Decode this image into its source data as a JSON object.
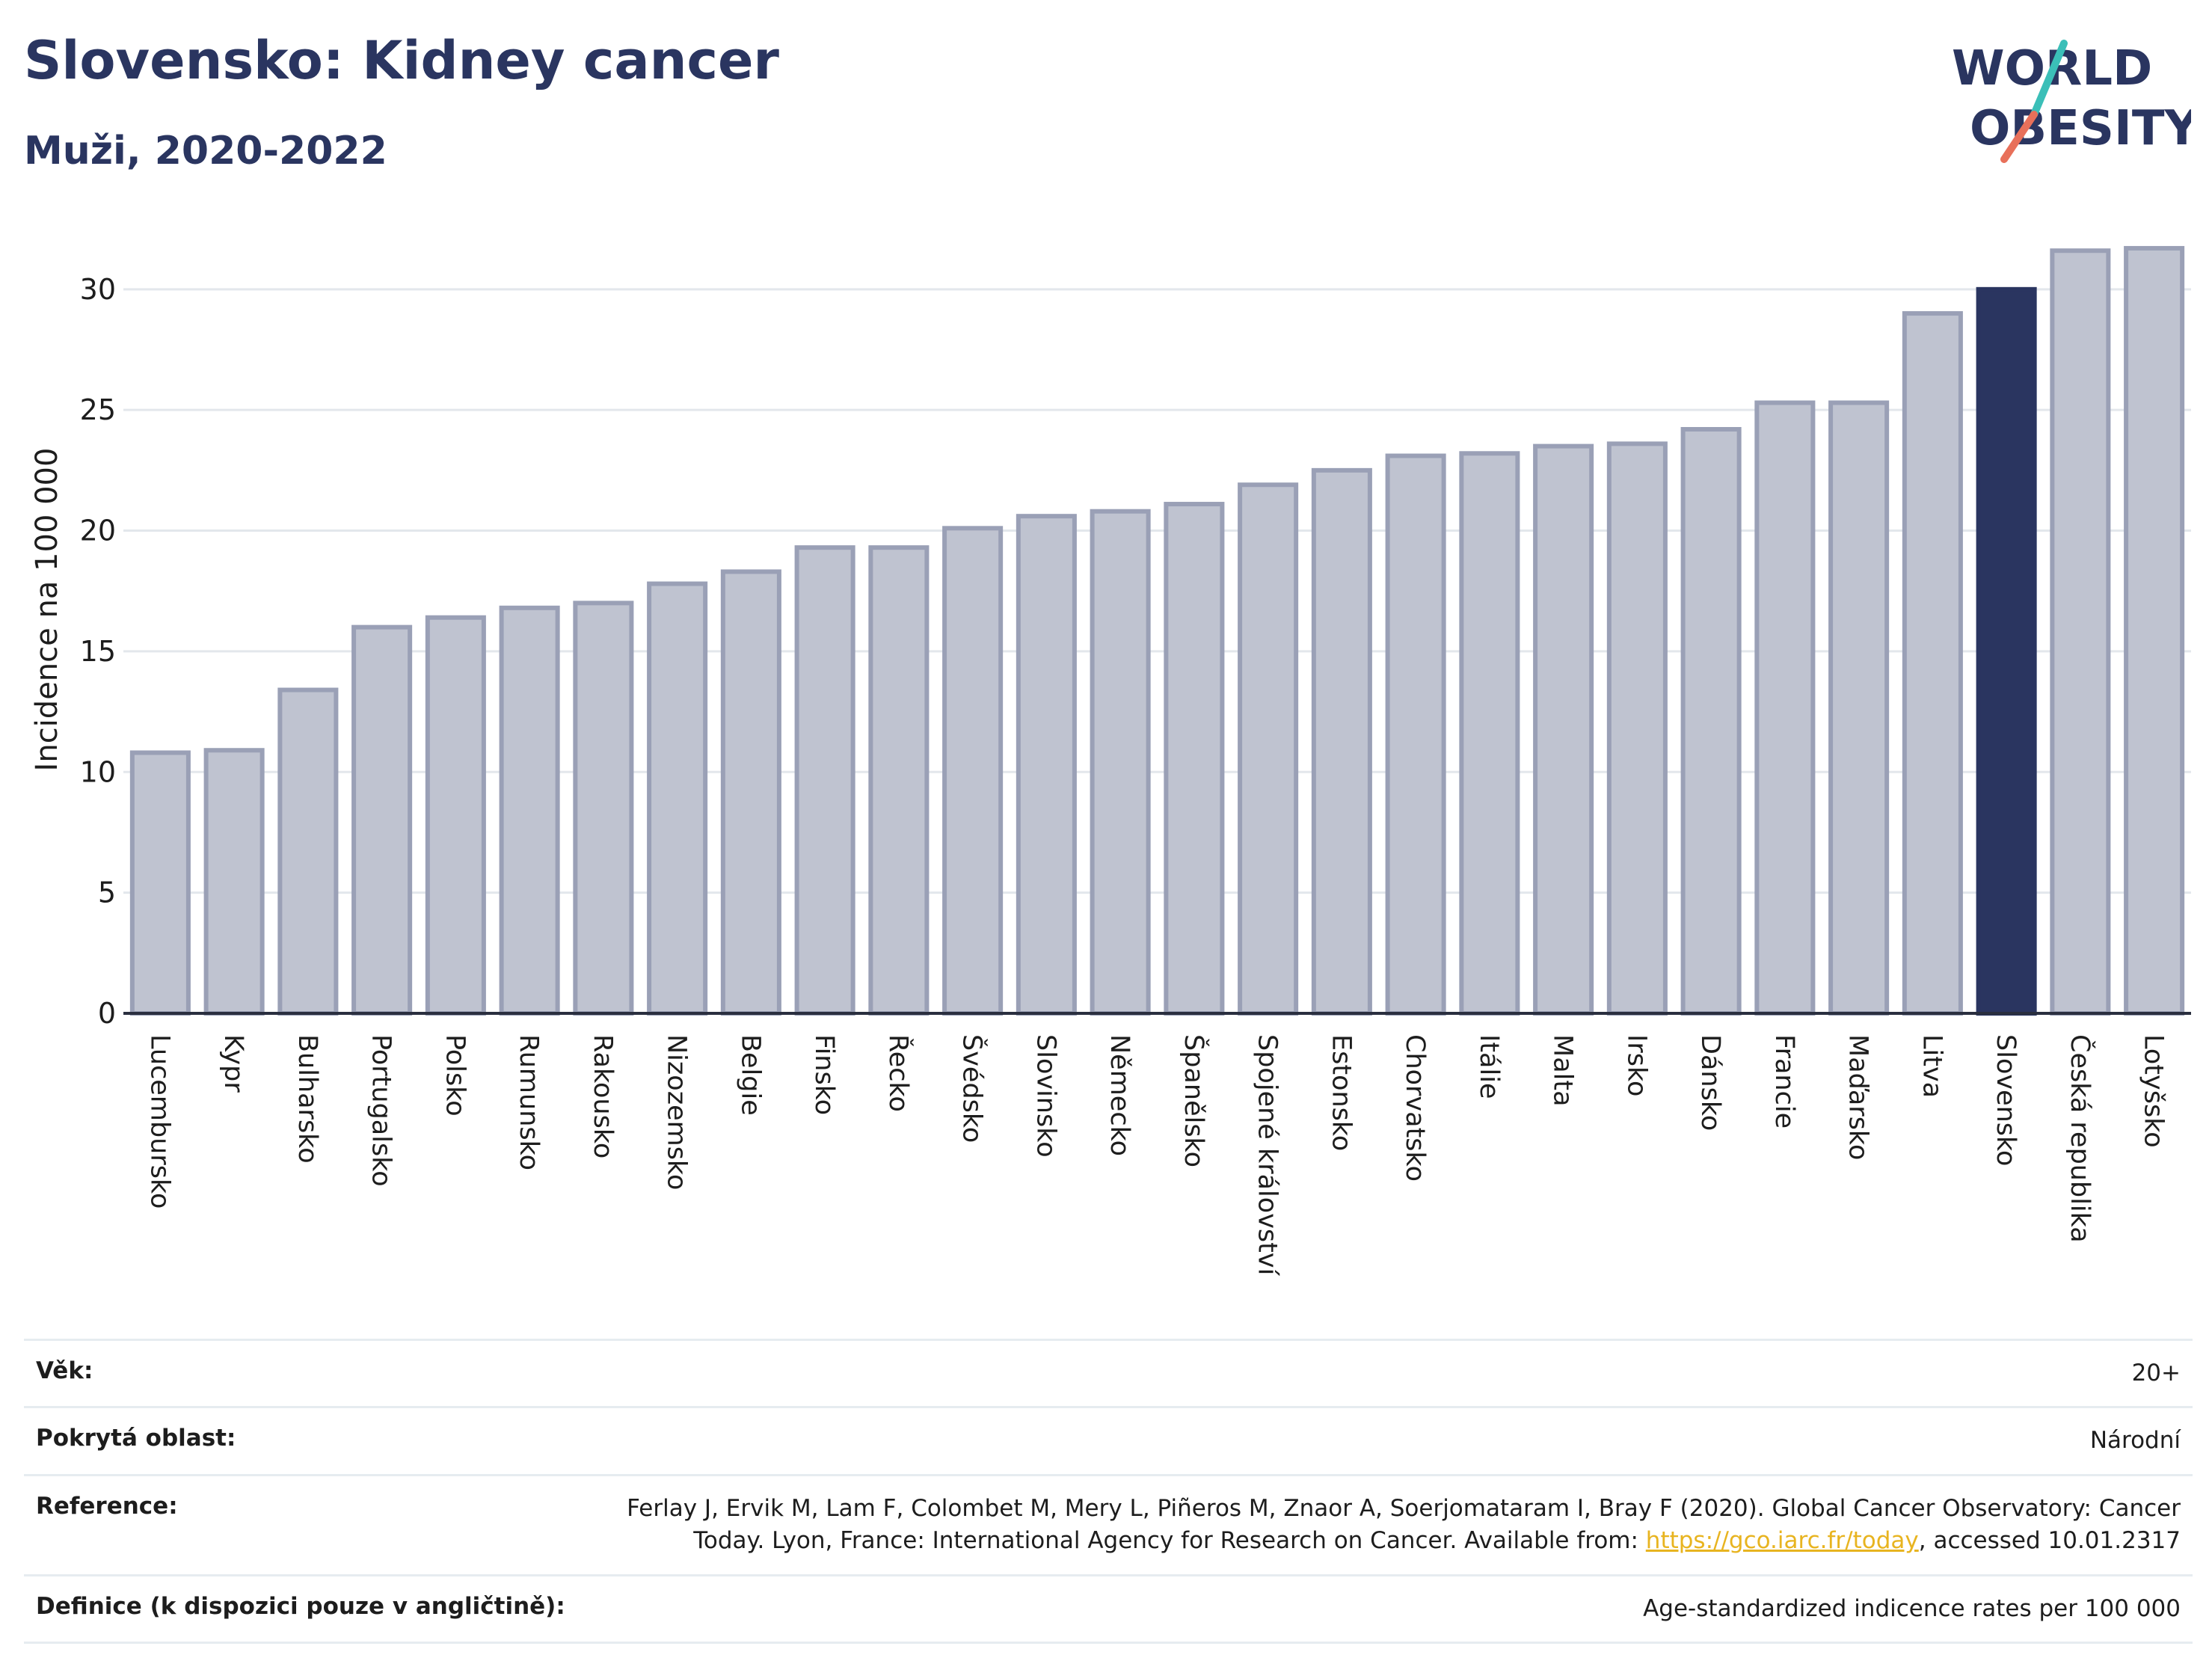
{
  "header": {
    "title": "Slovensko: Kidney cancer",
    "subtitle": "Muži, 2020-2022"
  },
  "logo": {
    "line1": "WORLD",
    "line2": "OBESITY",
    "accent_colors": [
      "#3bbfb8",
      "#e8705a"
    ]
  },
  "colors": {
    "bar_default": "#bfc3d0",
    "bar_border": "#9aa0b6",
    "bar_highlight": "#2a3560",
    "title": "#2a3560",
    "grid": "#e3e7ec",
    "link": "#e8b420"
  },
  "chart_data": {
    "type": "bar",
    "ylabel": "Incidence na 100 000",
    "ylim": [
      0,
      33
    ],
    "yticks": [
      0,
      5,
      10,
      15,
      20,
      25,
      30
    ],
    "grid": true,
    "highlight": "Slovensko",
    "categories": [
      "Lucembursko",
      "Kypr",
      "Bulharsko",
      "Portugalsko",
      "Polsko",
      "Rumunsko",
      "Rakousko",
      "Nizozemsko",
      "Belgie",
      "Finsko",
      "Řecko",
      "Švédsko",
      "Slovinsko",
      "Německo",
      "Španělsko",
      "Spojené království",
      "Estonsko",
      "Chorvatsko",
      "Itálie",
      "Malta",
      "Irsko",
      "Dánsko",
      "Francie",
      "Maďarsko",
      "Litva",
      "Slovensko",
      "Česká republika",
      "Lotyšsko"
    ],
    "values": [
      10.8,
      10.9,
      13.4,
      16.0,
      16.4,
      16.8,
      17.0,
      17.8,
      18.3,
      19.3,
      19.3,
      20.1,
      20.6,
      20.8,
      21.1,
      21.9,
      22.5,
      23.1,
      23.2,
      23.5,
      23.6,
      24.2,
      25.3,
      25.3,
      29.0,
      30.0,
      31.6,
      31.7
    ]
  },
  "info": {
    "age_label": "Věk:",
    "age_value": "20+",
    "area_label": "Pokrytá oblast:",
    "area_value": "Národní",
    "reference_label": "Reference:",
    "reference_text_1": "Ferlay J, Ervik M, Lam F, Colombet M, Mery L, Piñeros M, Znaor A, Soerjomataram I, Bray F (2020). Global Cancer Observatory: Cancer",
    "reference_text_2": "Today. Lyon, France: International Agency for Research on Cancer. Available from: ",
    "reference_link": "https://gco.iarc.fr/today",
    "reference_text_3": ", accessed 10.01.2317",
    "definition_label": "Definice (k dispozici pouze v angličtině):",
    "definition_value": "Age-standardized indicence rates per 100 000"
  }
}
